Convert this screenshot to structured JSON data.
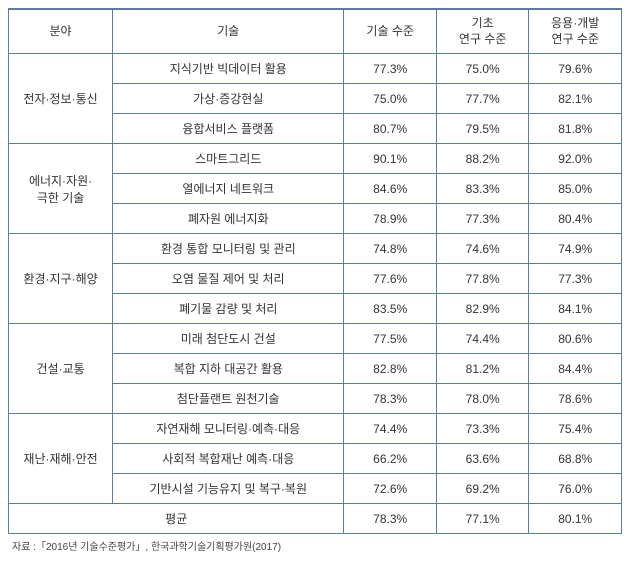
{
  "headers": {
    "field": "분야",
    "tech": "기술",
    "tech_level": "기술 수준",
    "basic_level": "기초\n연구 수준",
    "applied_level": "응용·개발\n연구 수준"
  },
  "groups": [
    {
      "field": "전자·정보·통신",
      "rows": [
        {
          "tech": "지식기반 빅데이터 활용",
          "tech_level": "77.3%",
          "basic": "75.0%",
          "applied": "79.6%"
        },
        {
          "tech": "가상·증강현실",
          "tech_level": "75.0%",
          "basic": "77.7%",
          "applied": "82.1%"
        },
        {
          "tech": "융합서비스 플랫폼",
          "tech_level": "80.7%",
          "basic": "79.5%",
          "applied": "81.8%"
        }
      ]
    },
    {
      "field": "에너지·자원·\n극한 기술",
      "rows": [
        {
          "tech": "스마트그리드",
          "tech_level": "90.1%",
          "basic": "88.2%",
          "applied": "92.0%"
        },
        {
          "tech": "열에너지 네트워크",
          "tech_level": "84.6%",
          "basic": "83.3%",
          "applied": "85.0%"
        },
        {
          "tech": "폐자원 에너지화",
          "tech_level": "78.9%",
          "basic": "77.3%",
          "applied": "80.4%"
        }
      ]
    },
    {
      "field": "환경·지구·해양",
      "rows": [
        {
          "tech": "환경 통합 모니터링 및 관리",
          "tech_level": "74.8%",
          "basic": "74.6%",
          "applied": "74.9%"
        },
        {
          "tech": "오염 물질 제어 및 처리",
          "tech_level": "77.6%",
          "basic": "77.8%",
          "applied": "77.3%"
        },
        {
          "tech": "폐기물 감량 및 처리",
          "tech_level": "83.5%",
          "basic": "82.9%",
          "applied": "84.1%"
        }
      ]
    },
    {
      "field": "건설·교통",
      "rows": [
        {
          "tech": "미래 첨단도시 건설",
          "tech_level": "77.5%",
          "basic": "74.4%",
          "applied": "80.6%"
        },
        {
          "tech": "복합 지하 대공간 활용",
          "tech_level": "82.8%",
          "basic": "81.2%",
          "applied": "84.4%"
        },
        {
          "tech": "첨단플랜트 원천기술",
          "tech_level": "78.3%",
          "basic": "78.0%",
          "applied": "78.6%"
        }
      ]
    },
    {
      "field": "재난·재해·안전",
      "rows": [
        {
          "tech": "자연재해 모니터링·예측·대응",
          "tech_level": "74.4%",
          "basic": "73.3%",
          "applied": "75.4%"
        },
        {
          "tech": "사회적 복합재난 예측·대응",
          "tech_level": "66.2%",
          "basic": "63.6%",
          "applied": "68.8%"
        },
        {
          "tech": "기반시설 기능유지 및 복구·복원",
          "tech_level": "72.6%",
          "basic": "69.2%",
          "applied": "76.0%"
        }
      ]
    }
  ],
  "average": {
    "label": "평균",
    "tech_level": "78.3%",
    "basic": "77.1%",
    "applied": "80.1%"
  },
  "source": "자료 :「2016년 기술수준평가」, 한국과학기술기획평가원(2017)",
  "colors": {
    "border": "#5b7ca3",
    "text": "#333333",
    "bg": "#ffffff"
  }
}
